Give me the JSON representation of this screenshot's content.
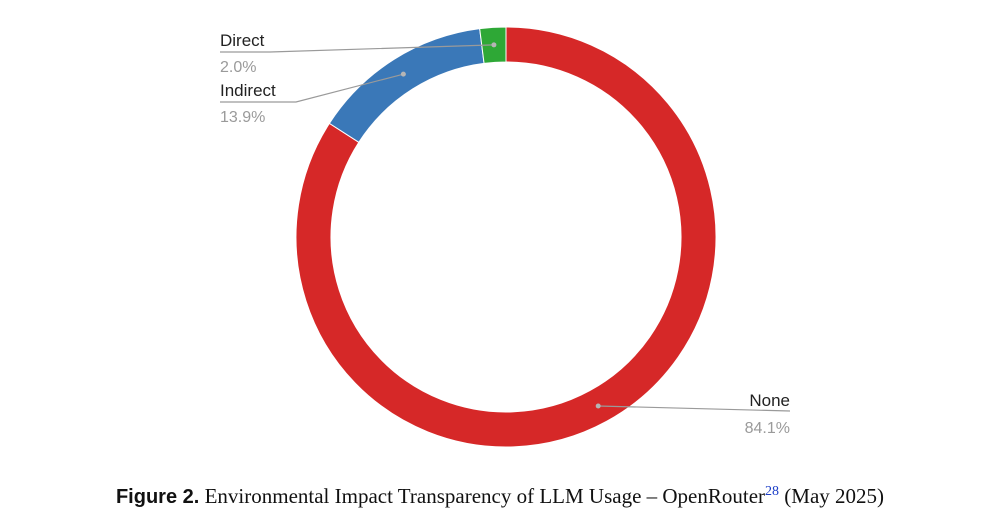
{
  "chart_data": {
    "type": "pie",
    "donut": true,
    "slices": [
      {
        "label": "None",
        "value_text": "84.1%",
        "value": 84.1,
        "color": "#d62828"
      },
      {
        "label": "Indirect",
        "value_text": "13.9%",
        "value": 13.9,
        "color": "#3a78b8"
      },
      {
        "label": "Direct",
        "value_text": "2.0%",
        "value": 2.0,
        "color": "#2ea836"
      }
    ],
    "legend": "none"
  },
  "caption": {
    "label": "Figure 2.",
    "text": "Environmental Impact Transparency of LLM Usage – OpenRouter",
    "footnote": "28",
    "suffix": "(May 2025)"
  }
}
